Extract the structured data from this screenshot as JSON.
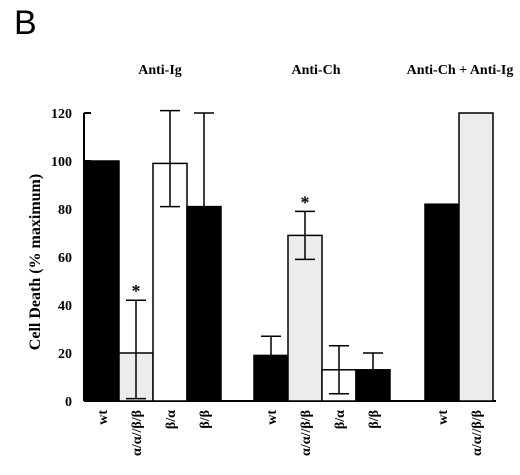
{
  "panel_label": "B",
  "chart_data": {
    "type": "bar",
    "title": "",
    "ylabel": "Cell Death (% maximum)",
    "xlabel": "",
    "ylim": [
      0,
      120
    ],
    "yticks": [
      0,
      20,
      40,
      60,
      80,
      100,
      120
    ],
    "grid": false,
    "groups": [
      {
        "title": "Anti-Ig",
        "bars": [
          {
            "label": "wt",
            "value": 100,
            "fill": "black",
            "err_low": null,
            "err_high": null,
            "sig": ""
          },
          {
            "label": "α/α//β/β",
            "value": 20,
            "fill": "light-gray",
            "err_low": 1,
            "err_high": 42,
            "sig": "*"
          },
          {
            "label": "β/α",
            "value": 99,
            "fill": "white",
            "err_low": 81,
            "err_high": 121,
            "sig": ""
          },
          {
            "label": "β/β",
            "value": 81,
            "fill": "black",
            "err_low": 41,
            "err_high": 120,
            "sig": ""
          }
        ]
      },
      {
        "title": "Anti-Ch",
        "bars": [
          {
            "label": "wt",
            "value": 19,
            "fill": "black",
            "err_low": 11,
            "err_high": 27,
            "sig": ""
          },
          {
            "label": "α/α//β/β",
            "value": 69,
            "fill": "light-gray",
            "err_low": 59,
            "err_high": 79,
            "sig": "*"
          },
          {
            "label": "β/α",
            "value": 13,
            "fill": "white",
            "err_low": 3,
            "err_high": 23,
            "sig": ""
          },
          {
            "label": "β/β",
            "value": 13,
            "fill": "black",
            "err_low": 6,
            "err_high": 20,
            "sig": ""
          }
        ]
      },
      {
        "title": "Anti-Ch + Anti-Ig",
        "bars": [
          {
            "label": "wt",
            "value": 82,
            "fill": "black",
            "err_low": null,
            "err_high": null,
            "sig": ""
          },
          {
            "label": "α/α//β/β",
            "value": 120,
            "fill": "light-gray",
            "err_low": null,
            "err_high": null,
            "sig": ""
          }
        ]
      }
    ]
  },
  "colors": {
    "black": "#000000",
    "light-gray": "#ececec",
    "white": "#ffffff"
  }
}
